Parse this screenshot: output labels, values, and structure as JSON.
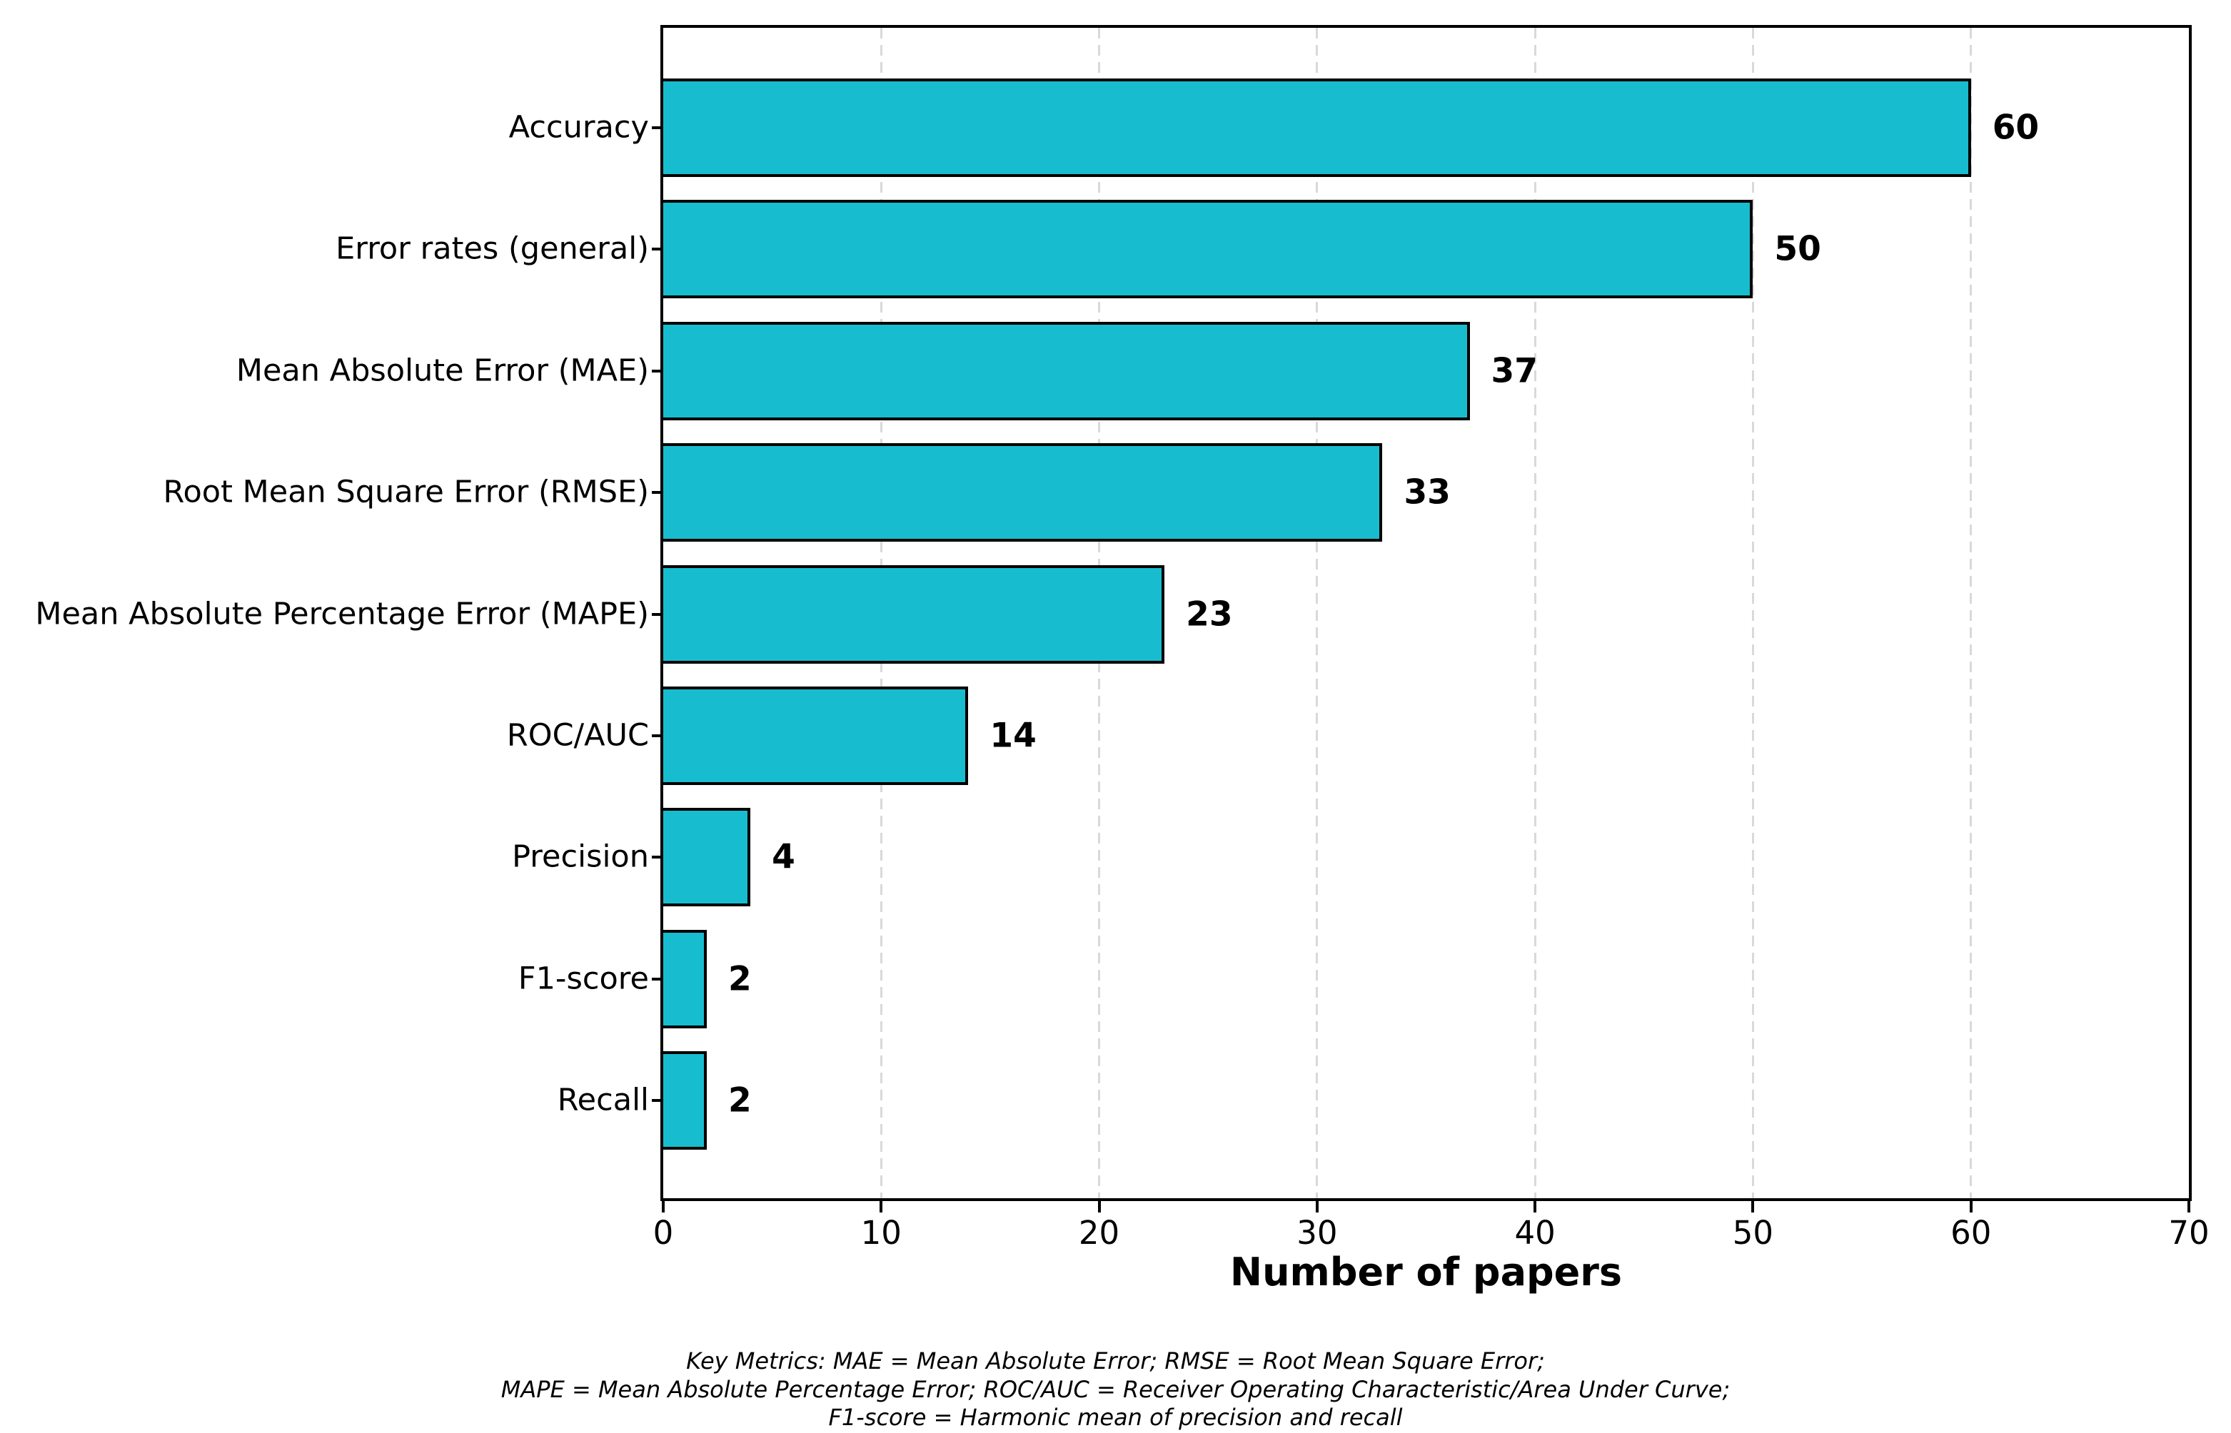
{
  "chart_data": {
    "type": "bar",
    "orientation": "horizontal",
    "categories": [
      "Accuracy",
      "Error rates (general)",
      "Mean Absolute Error (MAE)",
      "Root Mean Square Error (RMSE)",
      "Mean Absolute Percentage Error (MAPE)",
      "ROC/AUC",
      "Precision",
      "F1-score",
      "Recall"
    ],
    "values": [
      60,
      50,
      37,
      33,
      23,
      14,
      4,
      2,
      2
    ],
    "value_labels": [
      "60",
      "50",
      "37",
      "33",
      "23",
      "14",
      "4",
      "2",
      "2"
    ],
    "title": "",
    "xlabel": "Number of papers",
    "ylabel": "",
    "xlim": [
      0,
      70
    ],
    "xticks": [
      "0",
      "10",
      "20",
      "30",
      "40",
      "50",
      "60",
      "70"
    ],
    "grid": "vertical dashed gridlines at x-ticks, drawn behind bars",
    "legend": "none",
    "bar_color": "#17bdce",
    "bar_edge_color": "#000000",
    "grid_color": "#d9d9d9"
  },
  "footer": {
    "lines": [
      "Key Metrics: MAE = Mean Absolute Error; RMSE = Root Mean Square Error;",
      "MAPE = Mean Absolute Percentage Error; ROC/AUC = Receiver Operating Characteristic/Area Under Curve;",
      "F1-score = Harmonic mean of precision and recall"
    ]
  }
}
